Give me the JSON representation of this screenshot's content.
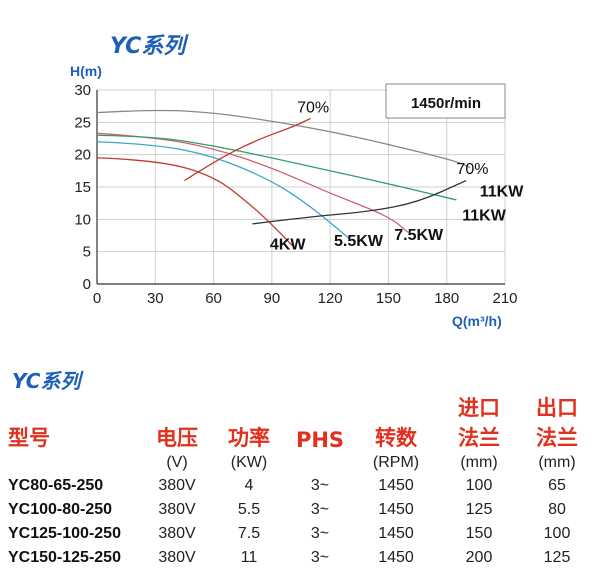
{
  "title": "YC系列",
  "chart_data": {
    "type": "line",
    "ylabel": "H(m)",
    "xlabel": "Q(m³/h)",
    "xlim": [
      0,
      210
    ],
    "ylim": [
      0,
      30
    ],
    "xticks": [
      "0",
      "30",
      "60",
      "90",
      "120",
      "150",
      "180",
      "210"
    ],
    "yticks": [
      "0",
      "5",
      "10",
      "15",
      "20",
      "25",
      "30"
    ],
    "grid": true,
    "speed_label": "1450r/min",
    "series": [
      {
        "name": "4KW",
        "color": "#c0392b",
        "points": [
          [
            0,
            19.5
          ],
          [
            30,
            19.2
          ],
          [
            60,
            16.8
          ],
          [
            80,
            12.0
          ],
          [
            90,
            9.2
          ],
          [
            102,
            5.5
          ]
        ]
      },
      {
        "name": "5.5KW",
        "color": "#3aa8c8",
        "points": [
          [
            0,
            22.0
          ],
          [
            30,
            21.6
          ],
          [
            60,
            19.8
          ],
          [
            90,
            16.0
          ],
          [
            110,
            12.0
          ],
          [
            130,
            7.0
          ]
        ]
      },
      {
        "name": "7.5KW",
        "color": "#d06070",
        "points": [
          [
            0,
            23.3
          ],
          [
            30,
            22.7
          ],
          [
            60,
            21.0
          ],
          [
            90,
            18.0
          ],
          [
            120,
            14.0
          ],
          [
            150,
            10.5
          ],
          [
            160,
            8.0
          ]
        ]
      },
      {
        "name": "11KW",
        "color": "#2e9e6a",
        "points": [
          [
            0,
            23.0
          ],
          [
            30,
            22.8
          ],
          [
            60,
            21.4
          ],
          [
            90,
            19.5
          ],
          [
            120,
            17.5
          ],
          [
            150,
            15.5
          ],
          [
            185,
            13.0
          ]
        ]
      },
      {
        "name": "11KW",
        "color": "#888888",
        "points": [
          [
            0,
            26.5
          ],
          [
            30,
            27.0
          ],
          [
            60,
            26.5
          ],
          [
            90,
            25.2
          ],
          [
            120,
            23.6
          ],
          [
            150,
            21.6
          ],
          [
            185,
            19.0
          ],
          [
            192,
            18.0
          ]
        ]
      },
      {
        "name": "70%",
        "color": "#c0392b",
        "points": [
          [
            45,
            16.0
          ],
          [
            65,
            19.8
          ],
          [
            85,
            22.6
          ],
          [
            100,
            24.2
          ],
          [
            110,
            25.6
          ]
        ]
      },
      {
        "name": "70%",
        "color": "#333333",
        "points": [
          [
            80,
            9.3
          ],
          [
            110,
            10.4
          ],
          [
            140,
            11.2
          ],
          [
            165,
            12.6
          ],
          [
            190,
            16.0
          ]
        ]
      }
    ],
    "annotations": [
      {
        "text": "70%",
        "x": 103,
        "y": 26.5
      },
      {
        "text": "70%",
        "x": 185,
        "y": 17.0
      },
      {
        "text": "11KW",
        "x": 197,
        "y": 13.5
      },
      {
        "text": "11KW",
        "x": 188,
        "y": 9.8
      },
      {
        "text": "7.5KW",
        "x": 153,
        "y": 6.8
      },
      {
        "text": "5.5KW",
        "x": 122,
        "y": 5.9
      },
      {
        "text": "4KW",
        "x": 89,
        "y": 5.3
      }
    ]
  },
  "table": {
    "title": "YC系列",
    "headers": [
      "型号",
      "电压",
      "功率",
      "PHS",
      "转数",
      "进口法兰",
      "出口法兰"
    ],
    "header_top": [
      "",
      "",
      "",
      "",
      "",
      "进口",
      "出口"
    ],
    "header_bottom": [
      "型号",
      "电压",
      "功率",
      "PHS",
      "转数",
      "法兰",
      "法兰"
    ],
    "units": [
      "",
      "(V)",
      "(KW)",
      "",
      "(RPM)",
      "(mm)",
      "(mm)"
    ],
    "rows": [
      [
        "YC80-65-250",
        "380V",
        "4",
        "3~",
        "1450",
        "100",
        "65"
      ],
      [
        "YC100-80-250",
        "380V",
        "5.5",
        "3~",
        "1450",
        "125",
        "80"
      ],
      [
        "YC125-100-250",
        "380V",
        "7.5",
        "3~",
        "1450",
        "150",
        "100"
      ],
      [
        "YC150-125-250",
        "380V",
        "11",
        "3~",
        "1450",
        "200",
        "125"
      ]
    ]
  }
}
